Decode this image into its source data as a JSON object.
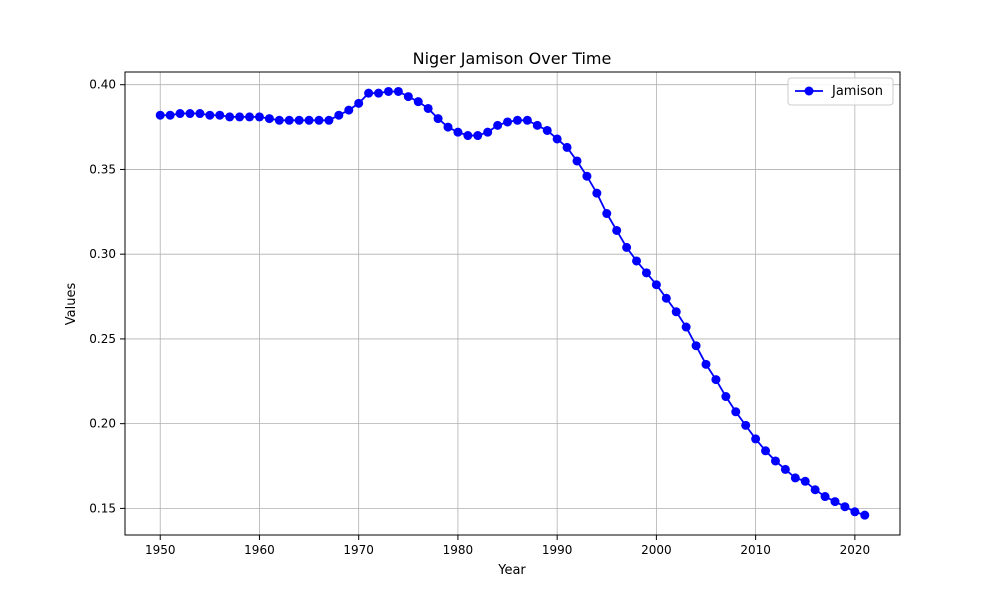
{
  "chart_data": {
    "type": "line",
    "title": "Niger Jamison Over Time",
    "xlabel": "Year",
    "ylabel": "Values",
    "xlim": [
      1946.45,
      2024.55
    ],
    "ylim": [
      0.1343,
      0.4075
    ],
    "xticks": [
      1950,
      1960,
      1970,
      1980,
      1990,
      2000,
      2010,
      2020
    ],
    "yticks": [
      0.15,
      0.2,
      0.25,
      0.3,
      0.35,
      0.4
    ],
    "ytick_labels": [
      "0.15",
      "0.20",
      "0.25",
      "0.30",
      "0.35",
      "0.40"
    ],
    "grid": true,
    "legend_position": "top-right",
    "x": [
      1950,
      1951,
      1952,
      1953,
      1954,
      1955,
      1956,
      1957,
      1958,
      1959,
      1960,
      1961,
      1962,
      1963,
      1964,
      1965,
      1966,
      1967,
      1968,
      1969,
      1970,
      1971,
      1972,
      1973,
      1974,
      1975,
      1976,
      1977,
      1978,
      1979,
      1980,
      1981,
      1982,
      1983,
      1984,
      1985,
      1986,
      1987,
      1988,
      1989,
      1990,
      1991,
      1992,
      1993,
      1994,
      1995,
      1996,
      1997,
      1998,
      1999,
      2000,
      2001,
      2002,
      2003,
      2004,
      2005,
      2006,
      2007,
      2008,
      2009,
      2010,
      2011,
      2012,
      2013,
      2014,
      2015,
      2016,
      2017,
      2018,
      2019,
      2020,
      2021
    ],
    "series": [
      {
        "name": "Jamison",
        "color": "#0000ff",
        "marker": "circle",
        "values": [
          0.382,
          0.382,
          0.383,
          0.383,
          0.383,
          0.382,
          0.382,
          0.381,
          0.381,
          0.381,
          0.381,
          0.38,
          0.379,
          0.379,
          0.379,
          0.379,
          0.379,
          0.379,
          0.382,
          0.385,
          0.389,
          0.395,
          0.395,
          0.396,
          0.396,
          0.393,
          0.39,
          0.386,
          0.38,
          0.375,
          0.372,
          0.37,
          0.37,
          0.372,
          0.376,
          0.378,
          0.379,
          0.379,
          0.376,
          0.373,
          0.368,
          0.363,
          0.355,
          0.346,
          0.336,
          0.324,
          0.314,
          0.304,
          0.296,
          0.289,
          0.282,
          0.274,
          0.266,
          0.257,
          0.246,
          0.235,
          0.226,
          0.216,
          0.207,
          0.199,
          0.191,
          0.184,
          0.178,
          0.173,
          0.168,
          0.166,
          0.161,
          0.157,
          0.154,
          0.151,
          0.148,
          0.146
        ]
      }
    ]
  }
}
